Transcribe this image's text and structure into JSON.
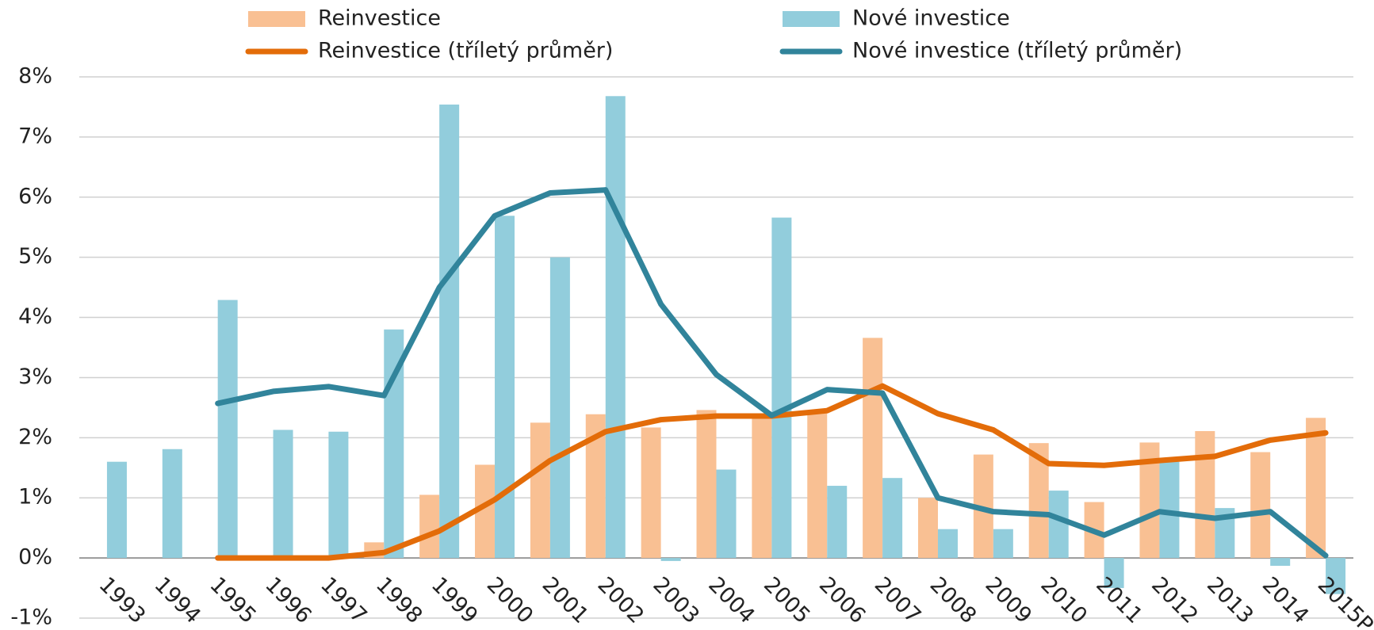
{
  "chart_data": {
    "type": "bar",
    "categories": [
      "1993",
      "1994",
      "1995",
      "1996",
      "1997",
      "1998",
      "1999",
      "2000",
      "2001",
      "2002",
      "2003",
      "2004",
      "2005",
      "2006",
      "2007",
      "2008",
      "2009",
      "2010",
      "2011",
      "2012",
      "2013",
      "2014",
      "2015P"
    ],
    "series": [
      {
        "name": "Reinvestice",
        "type": "bar",
        "color": "#f9c093",
        "values": [
          0,
          0,
          0,
          0,
          0,
          0.26,
          1.05,
          1.55,
          2.25,
          2.39,
          2.17,
          2.46,
          2.33,
          2.43,
          3.66,
          1.0,
          1.72,
          1.91,
          0.93,
          1.92,
          2.11,
          1.76,
          2.33
        ]
      },
      {
        "name": "Nové investice",
        "type": "bar",
        "color": "#92cddc",
        "values": [
          1.6,
          1.81,
          4.29,
          2.13,
          2.1,
          3.8,
          7.54,
          5.69,
          5.0,
          7.68,
          -0.05,
          1.47,
          5.66,
          1.2,
          1.33,
          0.48,
          0.48,
          1.12,
          -0.5,
          1.6,
          0.83,
          -0.13,
          -0.6
        ]
      },
      {
        "name": "Reinvestice (tříletý průměr)",
        "type": "line",
        "color": "#e36c09",
        "values": [
          null,
          null,
          0,
          0,
          0,
          0.09,
          0.45,
          0.97,
          1.62,
          2.1,
          2.3,
          2.36,
          2.36,
          2.45,
          2.86,
          2.4,
          2.13,
          1.57,
          1.54,
          1.62,
          1.69,
          1.96,
          2.08
        ]
      },
      {
        "name": "Nové investice (tříletý průměr)",
        "type": "line",
        "color": "#31849b",
        "values": [
          null,
          null,
          2.57,
          2.77,
          2.85,
          2.7,
          4.5,
          5.69,
          6.07,
          6.12,
          4.22,
          3.05,
          2.37,
          2.8,
          2.74,
          1.0,
          0.77,
          0.72,
          0.38,
          0.77,
          0.66,
          0.77,
          0.04
        ]
      }
    ],
    "ylim": [
      -1,
      8
    ],
    "yticks": [
      {
        "value": -1,
        "label": "-1%"
      },
      {
        "value": 0,
        "label": "0%"
      },
      {
        "value": 1,
        "label": "1%"
      },
      {
        "value": 2,
        "label": "2%"
      },
      {
        "value": 3,
        "label": "3%"
      },
      {
        "value": 4,
        "label": "4%"
      },
      {
        "value": 5,
        "label": "5%"
      },
      {
        "value": 6,
        "label": "6%"
      },
      {
        "value": 7,
        "label": "7%"
      },
      {
        "value": 8,
        "label": "8%"
      }
    ],
    "grid": true
  }
}
